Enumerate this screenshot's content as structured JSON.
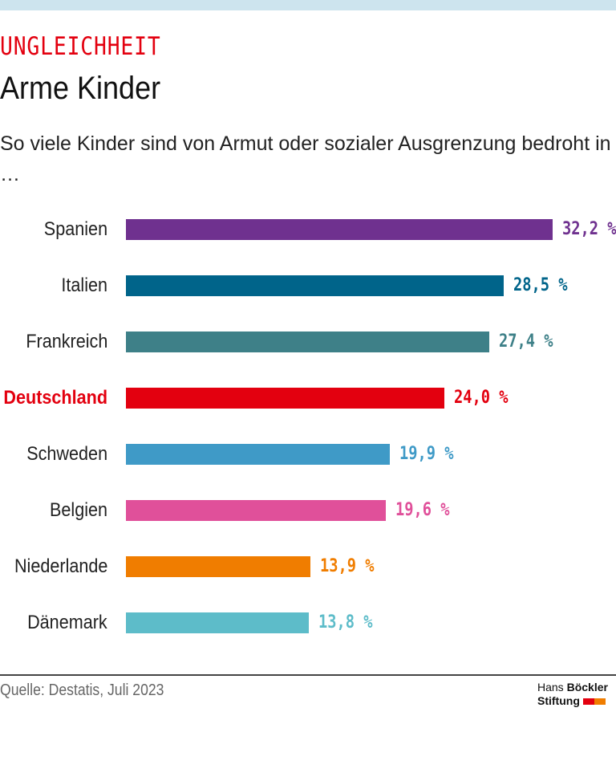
{
  "header": {
    "kicker": "UNGLEICHHEIT",
    "title": "Arme Kinder",
    "subtitle": "So viele Kinder sind von Armut oder sozialer Ausgrenzung bedroht in …"
  },
  "chart_data": {
    "type": "bar",
    "orientation": "horizontal",
    "categories": [
      "Spanien",
      "Italien",
      "Frankreich",
      "Deutschland",
      "Schweden",
      "Belgien",
      "Niederlande",
      "Dänemark"
    ],
    "values": [
      32.2,
      28.5,
      27.4,
      24.0,
      19.9,
      19.6,
      13.9,
      13.8
    ],
    "value_labels": [
      "32,2 %",
      "28,5 %",
      "27,4 %",
      "24,0 %",
      "19,9 %",
      "19,6 %",
      "13,9 %",
      "13,8 %"
    ],
    "colors": [
      "#6f318f",
      "#00648a",
      "#3e8088",
      "#e3000f",
      "#3f9ac7",
      "#e0509a",
      "#f07d00",
      "#5dbcc9"
    ],
    "highlight": "Deutschland",
    "unit": "%",
    "grid": false
  },
  "footer": {
    "source": "Quelle: Destatis, Juli 2023",
    "logo_line1_a": "Hans",
    "logo_line1_b": "Böckler",
    "logo_line2": "Stiftung",
    "logo_colors": [
      "#e3000f",
      "#f07d00"
    ]
  }
}
